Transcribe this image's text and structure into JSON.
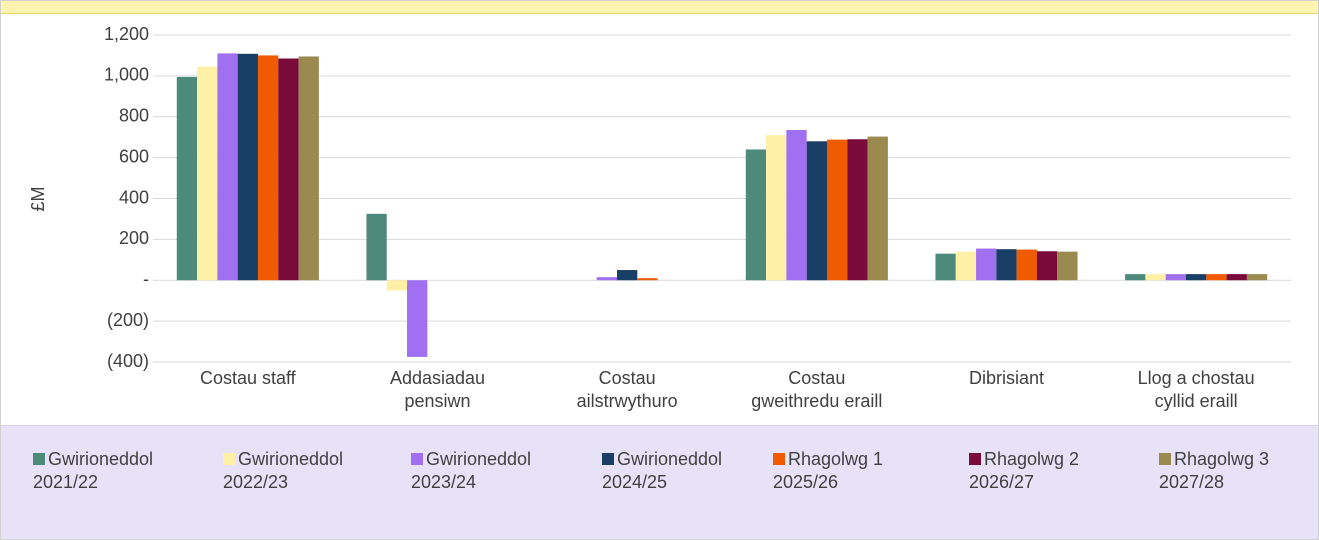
{
  "chart_data": {
    "type": "bar",
    "y_label": "£M",
    "categories": [
      "Costau staff",
      "Addasiadau pensiwn",
      "Costau ailstrwythuro",
      "Costau gweithredu eraill",
      "Dibrisiant",
      "Llog a chostau cyllid eraill"
    ],
    "series": [
      {
        "name": "Gwirioneddol 2021/22",
        "color": "#4e8a7c",
        "values": [
          995,
          325,
          0,
          640,
          130,
          30
        ]
      },
      {
        "name": "Gwirioneddol 2022/23",
        "color": "#fff0a8",
        "values": [
          1045,
          -50,
          0,
          710,
          140,
          30
        ]
      },
      {
        "name": "Gwirioneddol 2023/24",
        "color": "#a070f0",
        "values": [
          1110,
          -375,
          15,
          735,
          155,
          30
        ]
      },
      {
        "name": "Gwirioneddol 2024/25",
        "color": "#1a3f66",
        "values": [
          1108,
          0,
          50,
          680,
          152,
          30
        ]
      },
      {
        "name": "Rhagolwg 1 2025/26",
        "color": "#f05a00",
        "values": [
          1100,
          0,
          10,
          688,
          150,
          30
        ]
      },
      {
        "name": "Rhagolwg 2 2026/27",
        "color": "#7a0a3a",
        "values": [
          1085,
          0,
          0,
          690,
          142,
          30
        ]
      },
      {
        "name": "Rhagolwg 3 2027/28",
        "color": "#9a8a50",
        "values": [
          1095,
          0,
          0,
          703,
          140,
          30
        ]
      }
    ],
    "ylim": [
      -400,
      1200
    ],
    "yticks": [
      {
        "value": -400,
        "label": "(400)"
      },
      {
        "value": -200,
        "label": "(200)"
      },
      {
        "value": 0,
        "label": "-"
      },
      200,
      400,
      600,
      800,
      {
        "value": 1000,
        "label": "1,000"
      },
      {
        "value": 1200,
        "label": "1,200"
      }
    ],
    "grid": true
  }
}
